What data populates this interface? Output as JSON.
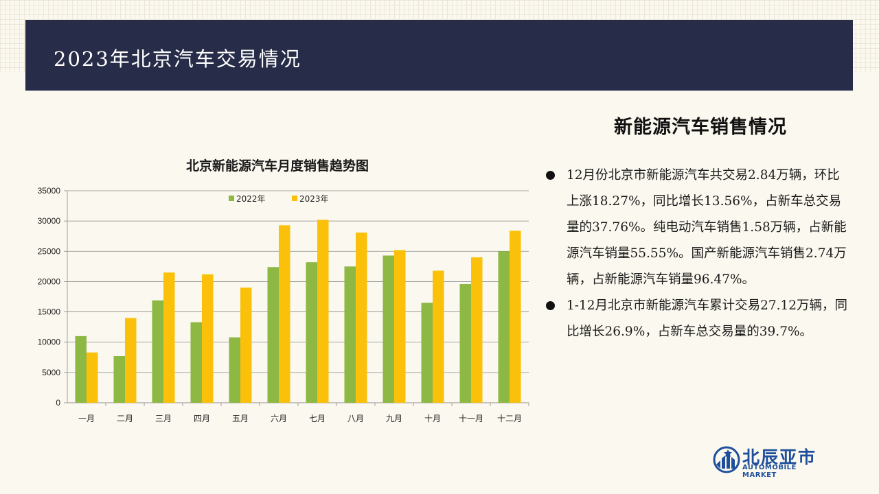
{
  "header": {
    "title": "2023年北京汽车交易情况"
  },
  "side": {
    "title": "新能源汽车销售情况",
    "bullets": [
      "12月份北京市新能源汽车共交易2.84万辆，环比上涨18.27%，同比增长13.56%，占新车总交易量的37.76%。纯电动汽车销售1.58万辆，占新能源汽车销量55.55%。国产新能源汽车销售2.74万辆，占新能源汽车销量96.47%。",
      "1-12月北京市新能源汽车累计交易27.12万辆，同比增长26.9%，占新车总交易量的39.7%。"
    ]
  },
  "logo": {
    "name": "北辰亚市",
    "sub": "AUTOMOBILE MARKET"
  },
  "colors": {
    "header_bg": "#272c48",
    "series_2022": "#8db843",
    "series_2023": "#fbc10a",
    "logo": "#1f4f9c"
  },
  "chart_data": {
    "type": "bar",
    "title": "北京新能源汽车月度销售趋势图",
    "categories": [
      "一月",
      "二月",
      "三月",
      "四月",
      "五月",
      "六月",
      "七月",
      "八月",
      "九月",
      "十月",
      "十一月",
      "十二月"
    ],
    "series": [
      {
        "name": "2022年",
        "color": "#8db843",
        "values": [
          11000,
          7700,
          16900,
          13300,
          10800,
          22400,
          23200,
          22500,
          24300,
          16500,
          19600,
          25000
        ]
      },
      {
        "name": "2023年",
        "color": "#fbc10a",
        "values": [
          8300,
          14000,
          21500,
          21200,
          19000,
          29300,
          30200,
          28100,
          25200,
          21800,
          24000,
          28400
        ]
      }
    ],
    "yticks": [
      0,
      5000,
      10000,
      15000,
      20000,
      25000,
      30000,
      35000
    ],
    "ylim": [
      0,
      35000
    ],
    "grid": true,
    "legend": "top-center"
  }
}
